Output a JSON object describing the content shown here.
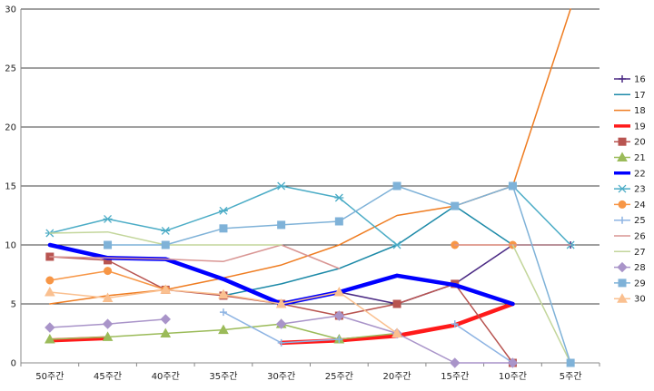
{
  "chart_data": {
    "type": "line",
    "categories": [
      "50주간",
      "45주간",
      "40주간",
      "35주간",
      "30주간",
      "25주간",
      "20주간",
      "15주간",
      "10주간",
      "5주간"
    ],
    "ylim": [
      0,
      30
    ],
    "yticks": [
      0,
      5,
      10,
      15,
      20,
      25,
      30
    ],
    "grid": true,
    "legend_position": "right",
    "series": [
      {
        "name": "16",
        "color": "#4b2a84",
        "marker": "plus",
        "values": [
          null,
          null,
          null,
          null,
          5,
          6,
          5,
          6.7,
          10,
          10
        ]
      },
      {
        "name": "17",
        "color": "#1d8aa8",
        "marker": "none",
        "values": [
          null,
          null,
          null,
          5.7,
          6.7,
          8,
          10,
          13.3,
          10,
          10
        ]
      },
      {
        "name": "18",
        "color": "#ef7d22",
        "marker": "none",
        "values": [
          5,
          5.7,
          6.2,
          7.2,
          8.3,
          10,
          12.5,
          13.3,
          15,
          30
        ]
      },
      {
        "name": "19",
        "color": "#ff1a1a",
        "marker": "none",
        "width": 4.5,
        "values": [
          1.9,
          2.1,
          null,
          null,
          1.7,
          1.9,
          2.3,
          3.2,
          5,
          null
        ]
      },
      {
        "name": "20",
        "color": "#b85450",
        "marker": "square",
        "values": [
          9,
          8.7,
          6.2,
          5.7,
          5,
          4,
          5,
          6.7,
          0,
          null
        ]
      },
      {
        "name": "21",
        "color": "#9bbb59",
        "marker": "triangle",
        "values": [
          2,
          2.2,
          2.5,
          2.8,
          3.3,
          2,
          2.5,
          null,
          null,
          null
        ]
      },
      {
        "name": "22",
        "color": "#0000ff",
        "marker": "none",
        "width": 4.5,
        "values": [
          10,
          8.9,
          8.8,
          7.1,
          5,
          6,
          7.4,
          6.6,
          5,
          null
        ]
      },
      {
        "name": "23",
        "color": "#4bacc6",
        "marker": "star",
        "values": [
          11,
          12.2,
          11.2,
          12.9,
          15,
          14,
          10,
          null,
          15,
          10
        ]
      },
      {
        "name": "24",
        "color": "#f79646",
        "marker": "circle",
        "values": [
          7,
          7.8,
          6.2,
          null,
          null,
          null,
          null,
          10,
          10,
          null
        ]
      },
      {
        "name": "25",
        "color": "#8eb4e3",
        "marker": "plus",
        "values": [
          null,
          null,
          null,
          4.3,
          1.7,
          2,
          null,
          3.3,
          0,
          null
        ]
      },
      {
        "name": "26",
        "color": "#d99694",
        "marker": "none",
        "values": [
          9,
          8.9,
          8.8,
          8.6,
          10,
          8,
          null,
          10,
          10,
          10
        ]
      },
      {
        "name": "27",
        "color": "#c3d69b",
        "marker": "none",
        "values": [
          11,
          11.1,
          10,
          10,
          10,
          null,
          10,
          null,
          10,
          0
        ]
      },
      {
        "name": "28",
        "color": "#a994c9",
        "marker": "diamond",
        "values": [
          3,
          3.3,
          3.7,
          null,
          3.3,
          4,
          2.5,
          0,
          0,
          null
        ]
      },
      {
        "name": "29",
        "color": "#7fb2d8",
        "marker": "square",
        "values": [
          null,
          10,
          10,
          11.4,
          11.7,
          12,
          15,
          13.3,
          15,
          0
        ]
      },
      {
        "name": "30",
        "color": "#fac090",
        "marker": "triangle",
        "values": [
          6,
          5.5,
          6.2,
          5.8,
          5,
          6,
          2.5,
          null,
          null,
          null
        ]
      }
    ]
  }
}
